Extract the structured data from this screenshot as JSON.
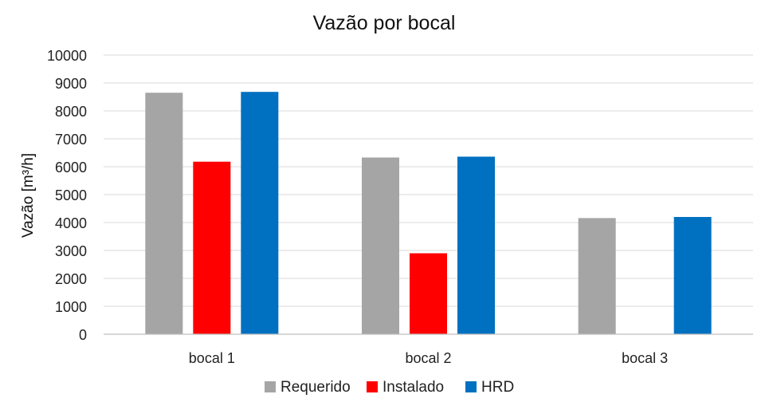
{
  "chart_data": {
    "type": "bar",
    "title": "Vazão por bocal",
    "ylabel": "Vazão [m³/h]",
    "xlabel": "",
    "ylim": [
      0,
      10000
    ],
    "yticks": [
      0,
      1000,
      2000,
      3000,
      4000,
      5000,
      6000,
      7000,
      8000,
      9000,
      10000
    ],
    "grid": true,
    "legend_position": "bottom",
    "categories": [
      "bocal 1",
      "bocal 2",
      "bocal 3"
    ],
    "series": [
      {
        "name": "Requerido",
        "color": "#a5a5a5",
        "values": [
          8650,
          6330,
          4160
        ]
      },
      {
        "name": "Instalado",
        "color": "#ff0000",
        "values": [
          6180,
          2900,
          null
        ]
      },
      {
        "name": "HRD",
        "color": "#0070c0",
        "values": [
          8680,
          6360,
          4200
        ]
      }
    ]
  }
}
